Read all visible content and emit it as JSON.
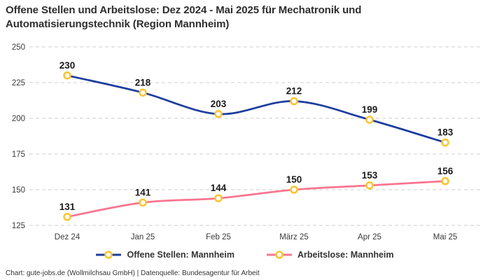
{
  "title": "Offene Stellen und Arbeitslose: Dez 2024 - Mai 2025 für Mechatronik und Automatisierungstechnik (Region Mannheim)",
  "footer": "Chart: gute-jobs.de (Wollmilchsau GmbH) | Datenquelle: Bundesagentur für Arbeit",
  "chart_data": {
    "type": "line",
    "title": "Offene Stellen und Arbeitslose: Dez 2024 - Mai 2025 für Mechatronik und Automatisierungstechnik (Region Mannheim)",
    "categories": [
      "Dez 24",
      "Jan 25",
      "Feb 25",
      "März 25",
      "Apr 25",
      "Mai 25"
    ],
    "series": [
      {
        "name": "Offene Stellen: Mannheim",
        "values": [
          230,
          218,
          203,
          212,
          199,
          183
        ],
        "color": "#1f3e9e"
      },
      {
        "name": "Arbeitslose: Mannheim",
        "values": [
          131,
          141,
          144,
          150,
          153,
          156
        ],
        "color": "#f9758f"
      }
    ],
    "xlabel": "",
    "ylabel": "",
    "ylim": [
      125,
      250
    ],
    "yticks": [
      125,
      150,
      175,
      200,
      225,
      250
    ],
    "grid": "horizontal-dashed",
    "legend_position": "bottom",
    "data_labels": true,
    "line_style": "smooth",
    "style": {
      "grid_color": "#cccccc",
      "marker_fill": "#ffffff",
      "marker_stroke": "#fcc32e",
      "tick_color": "#3b3b3b",
      "label_color": "#1a1a1a"
    }
  }
}
